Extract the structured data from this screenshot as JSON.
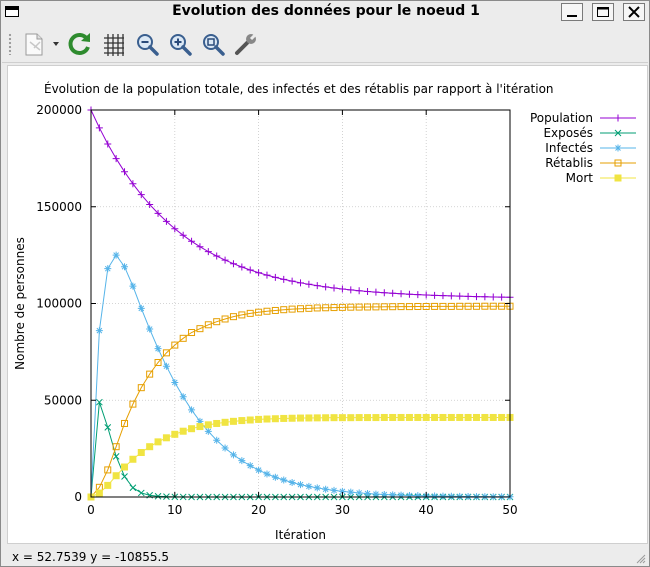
{
  "window": {
    "title": "Evolution des données pour le noeud 1"
  },
  "toolbar": {
    "icons": [
      "copy-icon",
      "dropdown-arrow-icon",
      "replot-icon",
      "grid-icon",
      "zoom-out-icon",
      "zoom-in-icon",
      "zoom-fit-icon",
      "settings-wrench-icon"
    ]
  },
  "status": {
    "text": "x = 52.7539 y = -10855.5"
  },
  "colors": {
    "population": "#9400d3",
    "exposes": "#009e73",
    "infectes": "#56b4e9",
    "retablis": "#e69f00",
    "mort": "#f0e442"
  },
  "chart_data": {
    "type": "line",
    "title": "Évolution de la population totale, des infectés et des rétablis par rapport à l'itération",
    "xlabel": "Itération",
    "ylabel": "Nombre de personnes",
    "xlim": [
      0,
      50
    ],
    "ylim": [
      0,
      200000
    ],
    "xticks": [
      "0",
      "10",
      "20",
      "30",
      "40",
      "50"
    ],
    "yticks": [
      "0",
      "50000",
      "100000",
      "150000",
      "200000"
    ],
    "grid": true,
    "legend_position": "top-right, outside plot",
    "x": [
      0,
      1,
      2,
      3,
      4,
      5,
      6,
      7,
      8,
      9,
      10,
      11,
      12,
      13,
      14,
      15,
      16,
      17,
      18,
      19,
      20,
      21,
      22,
      23,
      24,
      25,
      26,
      27,
      28,
      29,
      30,
      31,
      32,
      33,
      34,
      35,
      36,
      37,
      38,
      39,
      40,
      41,
      42,
      43,
      44,
      45,
      46,
      47,
      48,
      49,
      50
    ],
    "series": [
      {
        "name": "Population",
        "marker": "+",
        "values": [
          200000,
          190790,
          182450,
          174900,
          168060,
          161870,
          156260,
          151180,
          146580,
          142420,
          138650,
          135240,
          132150,
          129350,
          126810,
          124520,
          122440,
          120560,
          118860,
          117320,
          115920,
          114660,
          113510,
          112480,
          111540,
          110690,
          109920,
          109220,
          108590,
          108020,
          107500,
          107030,
          106610,
          106220,
          105880,
          105560,
          105280,
          105020,
          104790,
          104580,
          104390,
          104210,
          104060,
          103920,
          103790,
          103670,
          103560,
          103460,
          103380,
          103300,
          103220
        ]
      },
      {
        "name": "Exposés",
        "marker": "x",
        "values": [
          0,
          49000,
          36000,
          21000,
          10600,
          4800,
          2100,
          900,
          400,
          180,
          80,
          40,
          20,
          10,
          5,
          0,
          0,
          0,
          0,
          0,
          0,
          0,
          0,
          0,
          0,
          0,
          0,
          0,
          0,
          0,
          0,
          0,
          0,
          0,
          0,
          0,
          0,
          0,
          0,
          0,
          0,
          0,
          0,
          0,
          0,
          0,
          0,
          0,
          0,
          0,
          0
        ]
      },
      {
        "name": "Infectés",
        "marker": "*",
        "values": [
          0,
          86000,
          118000,
          125000,
          119000,
          109000,
          97500,
          86800,
          76700,
          67600,
          59200,
          51800,
          45000,
          39100,
          33900,
          29300,
          25300,
          21800,
          18800,
          16200,
          13900,
          11900,
          10200,
          8800,
          7500,
          6400,
          5500,
          4700,
          4000,
          3400,
          2900,
          2500,
          2100,
          1800,
          1500,
          1300,
          1100,
          950,
          800,
          680,
          580,
          490,
          420,
          360,
          300,
          260,
          220,
          190,
          160,
          140,
          120
        ]
      },
      {
        "name": "Rétablis",
        "marker": "open-square",
        "values": [
          0,
          5000,
          14000,
          26000,
          38000,
          48000,
          56500,
          63500,
          69500,
          74500,
          78500,
          82000,
          85000,
          87000,
          89000,
          90600,
          92000,
          93200,
          94100,
          94900,
          95500,
          96000,
          96400,
          96800,
          97100,
          97300,
          97500,
          97700,
          97800,
          97900,
          98000,
          98100,
          98150,
          98200,
          98250,
          98300,
          98350,
          98400,
          98400,
          98450,
          98450,
          98500,
          98500,
          98500,
          98550,
          98550,
          98550,
          98600,
          98600,
          98600,
          98600
        ]
      },
      {
        "name": "Mort",
        "marker": "filled-square",
        "values": [
          0,
          2000,
          6000,
          11000,
          15500,
          19500,
          23000,
          26000,
          28500,
          30600,
          32400,
          34000,
          35300,
          36400,
          37300,
          38000,
          38600,
          39100,
          39500,
          39800,
          40100,
          40300,
          40450,
          40600,
          40700,
          40800,
          40850,
          40900,
          40950,
          41000,
          41000,
          41000,
          41050,
          41050,
          41050,
          41100,
          41100,
          41100,
          41100,
          41100,
          41100,
          41100,
          41100,
          41100,
          41100,
          41100,
          41100,
          41100,
          41100,
          41100,
          41100
        ]
      }
    ]
  }
}
